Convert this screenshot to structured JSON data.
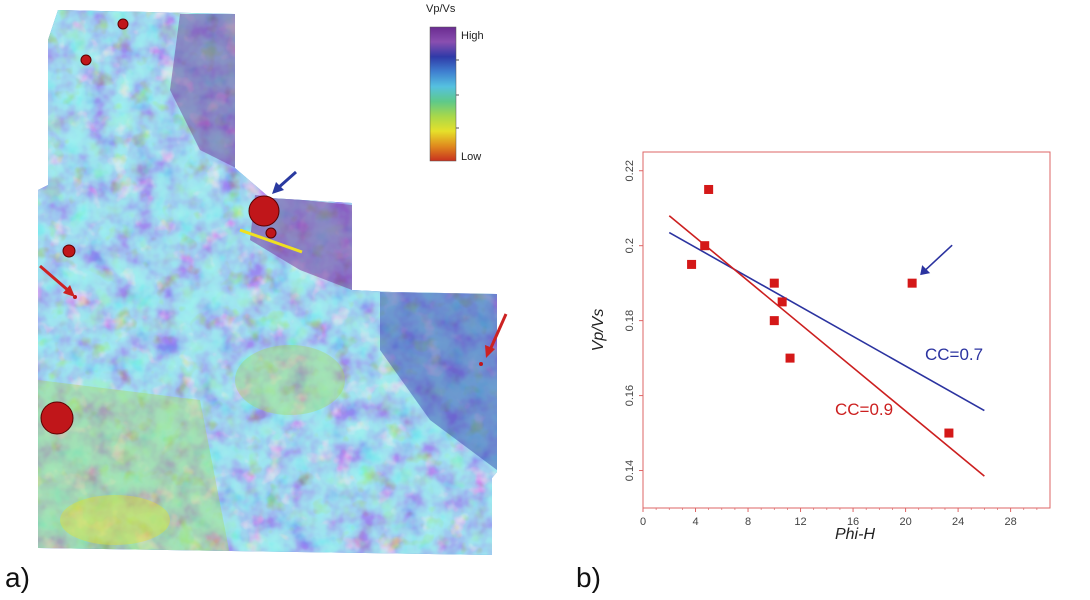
{
  "panels": {
    "a_label": "a)",
    "b_label": "b)"
  },
  "map": {
    "colorbar": {
      "title": "Vp/Vs",
      "high_label": "High",
      "low_label": "Low",
      "colors": [
        "#6a2c91",
        "#8a4fb0",
        "#2f3aa8",
        "#3f7fd0",
        "#55c1e0",
        "#5ec98a",
        "#a8d84a",
        "#e6e02a",
        "#e08a1e",
        "#c8311f"
      ]
    },
    "background_color": "#3f7fd0",
    "well_color": "#c0161a",
    "highlight_arrow_color": "#2a3aa0",
    "red_arrow_color": "#cc2222",
    "yellow_line_color": "#f0e020"
  },
  "chart_data": {
    "type": "scatter",
    "xlabel": "Phi-H",
    "ylabel": "Vp/Vs",
    "xlim": [
      0,
      31
    ],
    "ylim": [
      0.13,
      0.225
    ],
    "xticks": [
      0,
      4,
      8,
      12,
      16,
      20,
      24,
      28
    ],
    "yticks": [
      0.14,
      0.16,
      0.18,
      0.2,
      0.22
    ],
    "points": [
      {
        "x": 3.7,
        "y": 0.195
      },
      {
        "x": 4.7,
        "y": 0.2
      },
      {
        "x": 5.0,
        "y": 0.215
      },
      {
        "x": 10.0,
        "y": 0.19
      },
      {
        "x": 10.0,
        "y": 0.18
      },
      {
        "x": 10.6,
        "y": 0.185
      },
      {
        "x": 11.2,
        "y": 0.17
      },
      {
        "x": 20.5,
        "y": 0.19
      },
      {
        "x": 23.3,
        "y": 0.15
      }
    ],
    "marker_color": "#d41818",
    "fit_lines": [
      {
        "label": "CC=0.7",
        "color": "#2b33a0",
        "x": [
          2,
          26
        ],
        "y": [
          0.2035,
          0.156
        ]
      },
      {
        "label": "CC=0.9",
        "color": "#cc1f1f",
        "x": [
          2,
          26
        ],
        "y": [
          0.208,
          0.1385
        ]
      }
    ],
    "outlier_arrow": {
      "to": {
        "x": 20.5,
        "y": 0.19
      },
      "color": "#2b33a0"
    },
    "grid": false,
    "legend": "none"
  }
}
